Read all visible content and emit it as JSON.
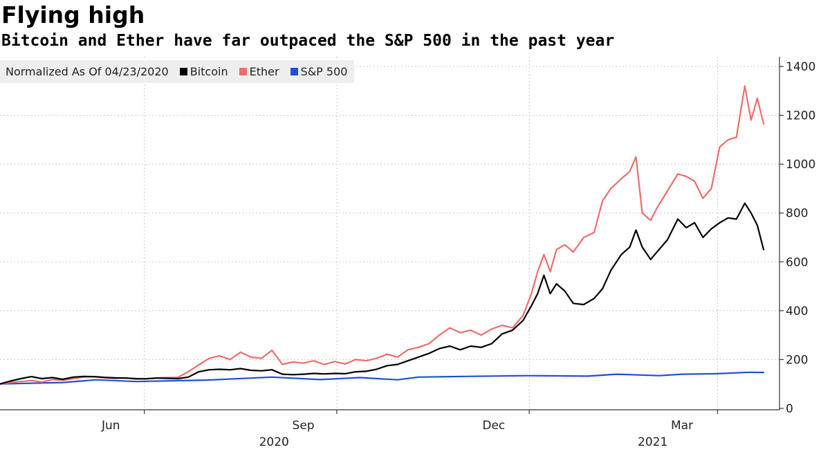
{
  "chart_data": {
    "type": "line",
    "title": "Flying high",
    "subtitle": "Bitcoin and Ether have far outpaced the S&P 500 in the past year",
    "normalization_note": "Normalized As Of 04/23/2020",
    "y_axis": {
      "position": "right",
      "ylim": [
        0,
        1400
      ],
      "ticks": [
        0,
        200,
        400,
        600,
        800,
        1000,
        1200,
        1400
      ]
    },
    "x_axis": {
      "range": [
        "2020-04-23",
        "2021-04-23"
      ],
      "month_ticks": [
        {
          "label": "Jun",
          "date": "2020-06-15"
        },
        {
          "label": "Sep",
          "date": "2020-09-15"
        },
        {
          "label": "Dec",
          "date": "2020-12-15"
        },
        {
          "label": "Mar",
          "date": "2021-03-15"
        }
      ],
      "year_labels": [
        {
          "label": "2020",
          "date": "2020-09-01"
        },
        {
          "label": "2021",
          "date": "2021-03-01"
        }
      ],
      "gridline_dates": [
        "2020-07-01",
        "2020-10-01",
        "2021-01-01",
        "2021-04-01"
      ]
    },
    "grid": true,
    "legend_placement": "top-left",
    "series": [
      {
        "name": "Bitcoin",
        "color": "#000000",
        "points": [
          [
            "2020-04-23",
            100
          ],
          [
            "2020-04-28",
            112
          ],
          [
            "2020-05-03",
            122
          ],
          [
            "2020-05-08",
            130
          ],
          [
            "2020-05-13",
            122
          ],
          [
            "2020-05-18",
            126
          ],
          [
            "2020-05-23",
            119
          ],
          [
            "2020-05-28",
            128
          ],
          [
            "2020-06-02",
            131
          ],
          [
            "2020-06-07",
            130
          ],
          [
            "2020-06-12",
            127
          ],
          [
            "2020-06-17",
            125
          ],
          [
            "2020-06-22",
            124
          ],
          [
            "2020-06-27",
            122
          ],
          [
            "2020-07-02",
            121
          ],
          [
            "2020-07-07",
            124
          ],
          [
            "2020-07-12",
            123
          ],
          [
            "2020-07-17",
            122
          ],
          [
            "2020-07-22",
            128
          ],
          [
            "2020-07-27",
            150
          ],
          [
            "2020-08-01",
            158
          ],
          [
            "2020-08-06",
            160
          ],
          [
            "2020-08-11",
            158
          ],
          [
            "2020-08-16",
            163
          ],
          [
            "2020-08-21",
            156
          ],
          [
            "2020-08-26",
            154
          ],
          [
            "2020-08-31",
            158
          ],
          [
            "2020-09-05",
            140
          ],
          [
            "2020-09-10",
            138
          ],
          [
            "2020-09-15",
            140
          ],
          [
            "2020-09-20",
            143
          ],
          [
            "2020-09-25",
            141
          ],
          [
            "2020-09-30",
            143
          ],
          [
            "2020-10-05",
            142
          ],
          [
            "2020-10-10",
            150
          ],
          [
            "2020-10-15",
            152
          ],
          [
            "2020-10-20",
            160
          ],
          [
            "2020-10-25",
            175
          ],
          [
            "2020-10-30",
            180
          ],
          [
            "2020-11-04",
            195
          ],
          [
            "2020-11-09",
            210
          ],
          [
            "2020-11-14",
            225
          ],
          [
            "2020-11-19",
            245
          ],
          [
            "2020-11-24",
            255
          ],
          [
            "2020-11-29",
            240
          ],
          [
            "2020-12-04",
            255
          ],
          [
            "2020-12-09",
            250
          ],
          [
            "2020-12-14",
            265
          ],
          [
            "2020-12-19",
            305
          ],
          [
            "2020-12-24",
            320
          ],
          [
            "2020-12-29",
            360
          ],
          [
            "2021-01-02",
            420
          ],
          [
            "2021-01-05",
            470
          ],
          [
            "2021-01-08",
            545
          ],
          [
            "2021-01-11",
            470
          ],
          [
            "2021-01-14",
            510
          ],
          [
            "2021-01-18",
            480
          ],
          [
            "2021-01-22",
            430
          ],
          [
            "2021-01-27",
            425
          ],
          [
            "2021-02-01",
            450
          ],
          [
            "2021-02-05",
            490
          ],
          [
            "2021-02-09",
            565
          ],
          [
            "2021-02-14",
            630
          ],
          [
            "2021-02-18",
            660
          ],
          [
            "2021-02-21",
            730
          ],
          [
            "2021-02-24",
            660
          ],
          [
            "2021-02-28",
            610
          ],
          [
            "2021-03-03",
            640
          ],
          [
            "2021-03-08",
            690
          ],
          [
            "2021-03-13",
            775
          ],
          [
            "2021-03-17",
            740
          ],
          [
            "2021-03-21",
            760
          ],
          [
            "2021-03-25",
            700
          ],
          [
            "2021-03-29",
            735
          ],
          [
            "2021-04-02",
            760
          ],
          [
            "2021-04-06",
            780
          ],
          [
            "2021-04-10",
            775
          ],
          [
            "2021-04-14",
            840
          ],
          [
            "2021-04-17",
            800
          ],
          [
            "2021-04-20",
            750
          ],
          [
            "2021-04-23",
            650
          ]
        ]
      },
      {
        "name": "Ether",
        "color": "#f06c6c",
        "points": [
          [
            "2020-04-23",
            100
          ],
          [
            "2020-04-28",
            106
          ],
          [
            "2020-05-03",
            110
          ],
          [
            "2020-05-08",
            114
          ],
          [
            "2020-05-13",
            108
          ],
          [
            "2020-05-18",
            118
          ],
          [
            "2020-05-23",
            115
          ],
          [
            "2020-05-28",
            122
          ],
          [
            "2020-06-02",
            128
          ],
          [
            "2020-06-07",
            130
          ],
          [
            "2020-06-12",
            125
          ],
          [
            "2020-06-17",
            123
          ],
          [
            "2020-06-22",
            125
          ],
          [
            "2020-06-27",
            120
          ],
          [
            "2020-07-02",
            122
          ],
          [
            "2020-07-07",
            125
          ],
          [
            "2020-07-12",
            126
          ],
          [
            "2020-07-17",
            127
          ],
          [
            "2020-07-22",
            150
          ],
          [
            "2020-07-27",
            178
          ],
          [
            "2020-08-01",
            205
          ],
          [
            "2020-08-06",
            215
          ],
          [
            "2020-08-11",
            200
          ],
          [
            "2020-08-16",
            230
          ],
          [
            "2020-08-21",
            210
          ],
          [
            "2020-08-26",
            205
          ],
          [
            "2020-08-31",
            238
          ],
          [
            "2020-09-05",
            180
          ],
          [
            "2020-09-10",
            190
          ],
          [
            "2020-09-15",
            185
          ],
          [
            "2020-09-20",
            195
          ],
          [
            "2020-09-25",
            180
          ],
          [
            "2020-09-30",
            192
          ],
          [
            "2020-10-05",
            182
          ],
          [
            "2020-10-10",
            200
          ],
          [
            "2020-10-15",
            195
          ],
          [
            "2020-10-20",
            205
          ],
          [
            "2020-10-25",
            222
          ],
          [
            "2020-10-30",
            210
          ],
          [
            "2020-11-04",
            240
          ],
          [
            "2020-11-09",
            250
          ],
          [
            "2020-11-14",
            265
          ],
          [
            "2020-11-19",
            300
          ],
          [
            "2020-11-24",
            330
          ],
          [
            "2020-11-29",
            310
          ],
          [
            "2020-12-04",
            320
          ],
          [
            "2020-12-09",
            300
          ],
          [
            "2020-12-14",
            325
          ],
          [
            "2020-12-19",
            340
          ],
          [
            "2020-12-24",
            330
          ],
          [
            "2020-12-29",
            380
          ],
          [
            "2021-01-02",
            470
          ],
          [
            "2021-01-05",
            560
          ],
          [
            "2021-01-08",
            630
          ],
          [
            "2021-01-11",
            560
          ],
          [
            "2021-01-14",
            650
          ],
          [
            "2021-01-18",
            670
          ],
          [
            "2021-01-22",
            640
          ],
          [
            "2021-01-27",
            700
          ],
          [
            "2021-02-01",
            720
          ],
          [
            "2021-02-05",
            850
          ],
          [
            "2021-02-09",
            900
          ],
          [
            "2021-02-14,",
            940
          ],
          [
            "2021-02-18",
            970
          ],
          [
            "2021-02-21",
            1030
          ],
          [
            "2021-02-24",
            800
          ],
          [
            "2021-02-28",
            770
          ],
          [
            "2021-03-03",
            820
          ],
          [
            "2021-03-08",
            890
          ],
          [
            "2021-03-13",
            960
          ],
          [
            "2021-03-17",
            950
          ],
          [
            "2021-03-21",
            930
          ],
          [
            "2021-03-25",
            860
          ],
          [
            "2021-03-29",
            900
          ],
          [
            "2021-04-02",
            1070
          ],
          [
            "2021-04-06",
            1100
          ],
          [
            "2021-04-10",
            1110
          ],
          [
            "2021-04-14",
            1320
          ],
          [
            "2021-04-17",
            1180
          ],
          [
            "2021-04-20",
            1270
          ],
          [
            "2021-04-23",
            1165
          ]
        ]
      },
      {
        "name": "S&P 500",
        "color": "#1f4fd6",
        "points": [
          [
            "2020-04-23",
            100
          ],
          [
            "2020-05-23",
            106
          ],
          [
            "2020-06-08",
            117
          ],
          [
            "2020-06-27",
            110
          ],
          [
            "2020-07-31",
            116
          ],
          [
            "2020-08-31",
            128
          ],
          [
            "2020-09-23",
            118
          ],
          [
            "2020-10-12",
            126
          ],
          [
            "2020-10-30",
            117
          ],
          [
            "2020-11-09",
            128
          ],
          [
            "2020-12-01",
            131
          ],
          [
            "2020-12-31",
            134
          ],
          [
            "2021-01-29",
            132
          ],
          [
            "2021-02-12",
            140
          ],
          [
            "2021-03-04",
            134
          ],
          [
            "2021-03-15",
            140
          ],
          [
            "2021-04-01",
            142
          ],
          [
            "2021-04-16",
            148
          ],
          [
            "2021-04-23",
            147
          ]
        ]
      }
    ]
  }
}
